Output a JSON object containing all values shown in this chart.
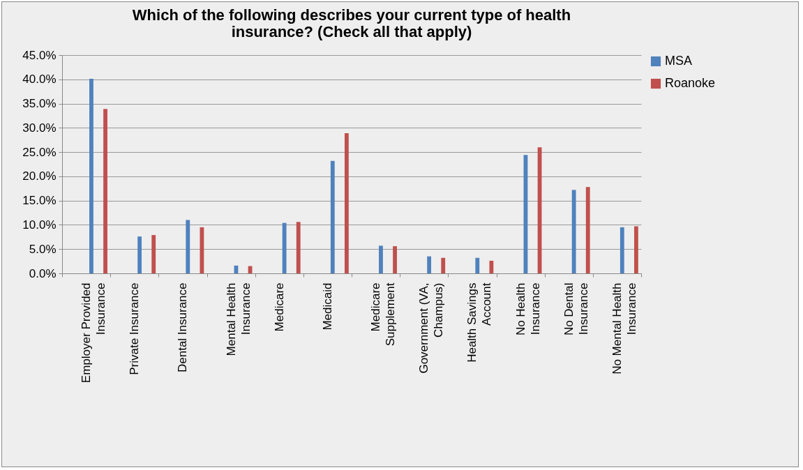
{
  "chart_data": {
    "type": "bar",
    "title": "Which of the following describes your current type of health insurance? (Check all that apply)",
    "categories": [
      "Employer Provided Insurance",
      "Private Insurance",
      "Dental Insurance",
      "Mental Health Insurance",
      "Medicare",
      "Medicaid",
      "Medicare Supplement",
      "Government (VA, Champus)",
      "Health Savings Account",
      "No Health Insurance",
      "No Dental Insurance",
      "No Mental Health Insurance"
    ],
    "series": [
      {
        "name": "MSA",
        "color": "#4f81bd",
        "values": [
          40.1,
          7.6,
          11.0,
          1.6,
          10.4,
          23.2,
          5.7,
          3.5,
          3.2,
          24.4,
          17.2,
          9.5
        ]
      },
      {
        "name": "Roanoke",
        "color": "#c0504d",
        "values": [
          33.9,
          7.9,
          9.5,
          1.5,
          10.6,
          28.9,
          5.6,
          3.2,
          2.6,
          26.0,
          17.8,
          9.7
        ]
      }
    ],
    "ylim": [
      0,
      45
    ],
    "yticks": [
      {
        "value": 0,
        "label": "0.0%"
      },
      {
        "value": 5,
        "label": "5.0%"
      },
      {
        "value": 10,
        "label": "10.0%"
      },
      {
        "value": 15,
        "label": "15.0%"
      },
      {
        "value": 20,
        "label": "20.0%"
      },
      {
        "value": 25,
        "label": "25.0%"
      },
      {
        "value": 30,
        "label": "30.0%"
      },
      {
        "value": 35,
        "label": "35.0%"
      },
      {
        "value": 40,
        "label": "40.0%"
      },
      {
        "value": 45,
        "label": "45.0%"
      }
    ],
    "grid": "y",
    "legend": "right"
  }
}
